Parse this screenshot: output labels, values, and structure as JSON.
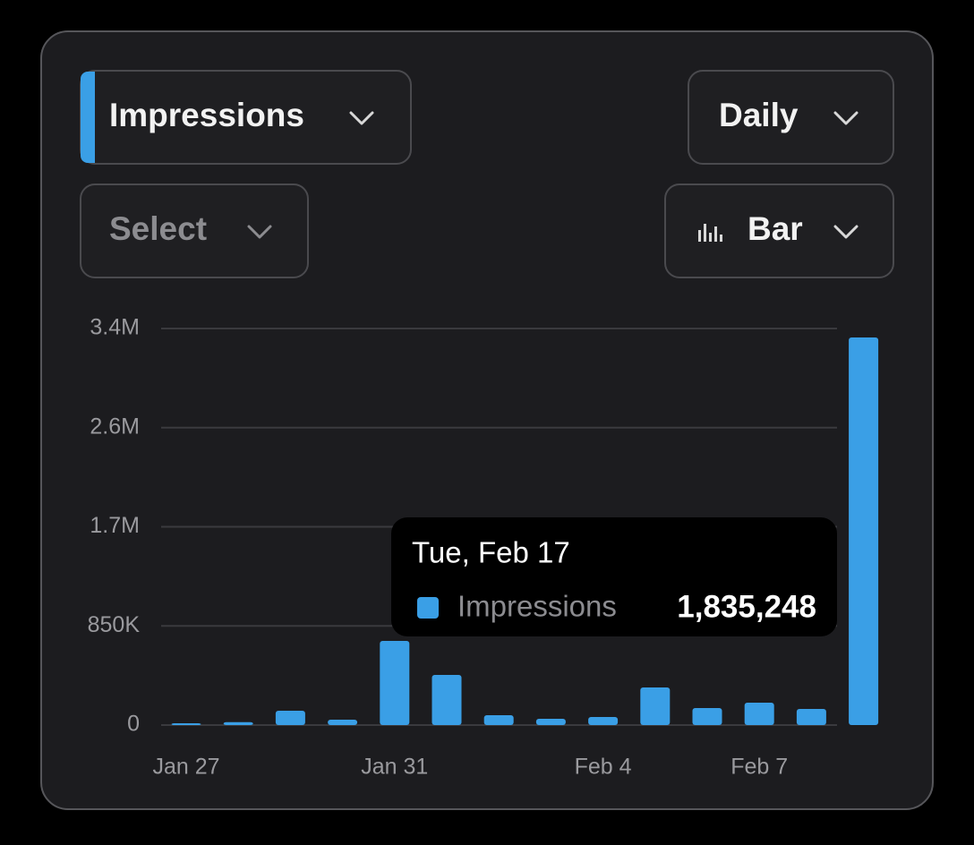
{
  "controls": {
    "metric": "Impressions",
    "interval": "Daily",
    "compare": "Select",
    "chart_style": "Bar"
  },
  "chart_data": {
    "type": "bar",
    "color": "#3a9fe6",
    "categories": [
      "Jan 27",
      null,
      null,
      null,
      "Jan 31",
      null,
      null,
      null,
      "Feb 4",
      null,
      null,
      "Feb 7",
      null,
      null
    ],
    "values": [
      15000,
      25000,
      123000,
      46000,
      721000,
      430000,
      84000,
      54000,
      69000,
      322000,
      146000,
      192000,
      138000,
      3323000
    ],
    "ylim": [
      0,
      3400000
    ],
    "yticks": [
      0,
      {
        "value": 850000,
        "label": "850K"
      },
      {
        "value": 1700000,
        "label": "1.7M"
      },
      {
        "value": 2550000,
        "label": "2.6M"
      },
      {
        "value": 3400000,
        "label": "3.4M"
      }
    ],
    "grid": true
  },
  "tooltip": {
    "date": "Tue, Feb 17",
    "series": "Impressions",
    "value": "1,835,248"
  }
}
